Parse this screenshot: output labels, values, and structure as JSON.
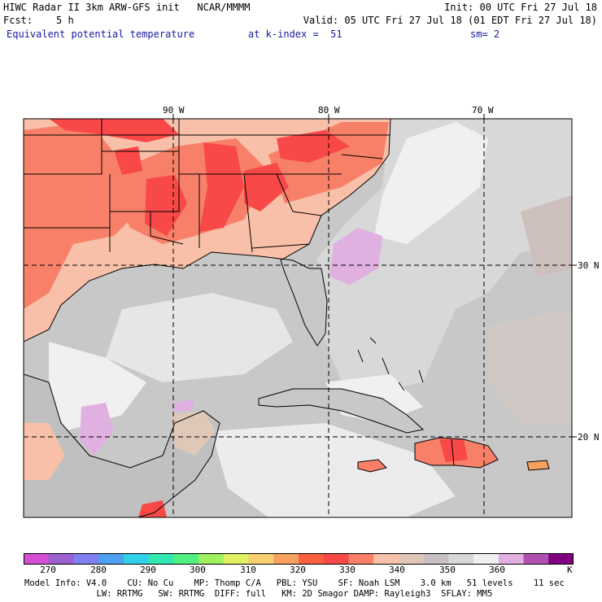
{
  "header": {
    "line1_left": "HIWC Radar II 3km ARW-GFS init   NCAR/MMMM",
    "line1_right": "Init: 00 UTC Fri 27 Jul 18",
    "line2_left": "Fcst:    5 h",
    "line2_right": "Valid: 05 UTC Fri 27 Jul 18 (01 EDT Fri 27 Jul 18)",
    "line3_left": "Equivalent potential temperature",
    "line3_mid": "at k-index =  51",
    "line3_right": "sm= 2"
  },
  "map": {
    "lon_labels": [
      "90 W",
      "80 W",
      "70 W"
    ],
    "lat_labels": [
      "30 N",
      "20 N"
    ]
  },
  "colorbar": {
    "colors": [
      "#d44fd4",
      "#9c5fd0",
      "#8080f0",
      "#50a0f0",
      "#30d0e8",
      "#30e8b0",
      "#50f080",
      "#a0f060",
      "#e0f060",
      "#f8d070",
      "#f8a060",
      "#f86040",
      "#f84848",
      "#f88068",
      "#f8c0a8",
      "#e0c8b8",
      "#c8c0c0",
      "#d8d8d8",
      "#f0f0f0",
      "#e0b0e0",
      "#b050b0",
      "#800080"
    ],
    "labels": [
      "270",
      "280",
      "290",
      "300",
      "310",
      "320",
      "330",
      "340",
      "350",
      "360"
    ],
    "unit": "K"
  },
  "footer": {
    "line1": "Model Info: V4.0    CU: No Cu    MP: Thomp C/A   PBL: YSU    SF: Noah LSM    3.0 km   51 levels    11 sec",
    "line2": "              LW: RRTMG   SW: RRTMG  DIFF: full   KM: 2D Smagor DAMP: Rayleigh3  SFLAY: MM5"
  }
}
